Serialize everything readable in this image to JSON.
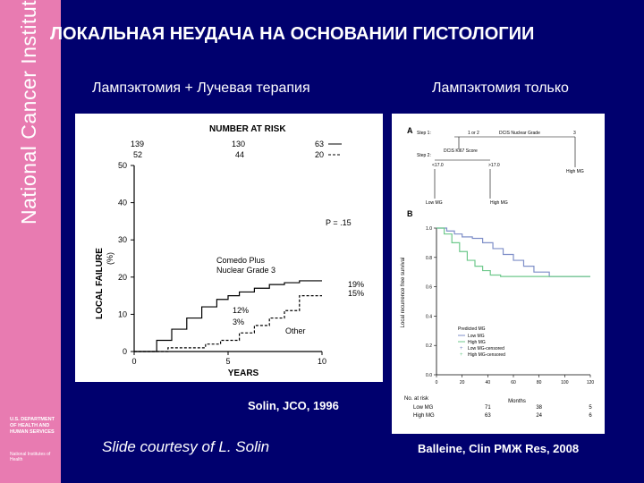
{
  "sidebar": {
    "institute": "National Cancer Institute",
    "hhs": "U.S. DEPARTMENT OF HEALTH AND HUMAN SERVICES",
    "nih": "National Institutes of Health"
  },
  "slide": {
    "title": "ЛОКАЛЬНАЯ НЕУДАЧА НА ОСНОВАНИИ ГИСТОЛОГИИ",
    "left_label": "Лампэктомия + Лучевая терапия",
    "right_label": "Лампэктомия только",
    "left_caption": "Solin, JCO, 1996",
    "right_caption": "Balleine, Clin PMЖ Res, 2008",
    "courtesy": "Slide courtesy of L. Solin"
  },
  "chart_data": [
    {
      "type": "line",
      "number_at_risk_title": "NUMBER AT RISK",
      "at_risk": {
        "left": [
          "139",
          "52"
        ],
        "middle": [
          "130",
          "44"
        ],
        "right": [
          "63",
          "20"
        ]
      },
      "xlabel": "YEARS",
      "ylabel": "LOCAL FAILURE",
      "ylabel_unit": "(%)",
      "xlim": [
        0,
        10
      ],
      "ylim": [
        0,
        50
      ],
      "x_ticks": [
        "0",
        "5",
        "10"
      ],
      "y_ticks": [
        "0",
        "10",
        "20",
        "30",
        "40",
        "50"
      ],
      "p_value": "P = .15",
      "series": [
        {
          "name": "Comedo Plus Nuclear Grade 3",
          "style": "solid",
          "x": [
            0,
            1.2,
            1.2,
            2.0,
            2.0,
            2.8,
            2.8,
            3.6,
            3.6,
            4.4,
            4.4,
            5.0,
            5.0,
            5.6,
            5.6,
            6.4,
            6.4,
            7.2,
            7.2,
            8.0,
            8.0,
            8.8,
            8.8,
            9.6,
            9.6,
            10
          ],
          "y": [
            0,
            0,
            3,
            3,
            6,
            6,
            9,
            9,
            12,
            12,
            14,
            14,
            15,
            15,
            16,
            16,
            17,
            17,
            18,
            18,
            18.5,
            18.5,
            19,
            19,
            19,
            19
          ]
        },
        {
          "name": "Other",
          "style": "dashed",
          "x": [
            0,
            1.8,
            1.8,
            3.8,
            3.8,
            4.6,
            4.6,
            5.6,
            5.6,
            6.4,
            6.4,
            7.2,
            7.2,
            8.0,
            8.0,
            8.8,
            8.8,
            10
          ],
          "y": [
            0,
            0,
            1,
            1,
            2,
            2,
            3,
            3,
            5,
            5,
            7,
            7,
            9,
            9,
            11,
            11,
            15,
            15
          ]
        }
      ],
      "annotations": [
        "Comedo Plus",
        "Nuclear Grade 3",
        "Other",
        "19%",
        "15%",
        "12%",
        "3%"
      ]
    },
    {
      "type": "line",
      "panel_a": {
        "label": "A",
        "step1": "Step 1:",
        "step1_values": [
          "1 or 2",
          "DCIS Nuclear Grade",
          "3"
        ],
        "step2": "Step 2:",
        "step2_title": "DCIS Ki67 Score",
        "step2_values": [
          "<17.0",
          ">17.0"
        ],
        "outcomes": [
          "Low MG",
          "High MG",
          "High MG"
        ]
      },
      "panel_b_label": "B",
      "ylabel": "Local recurrence free survival",
      "xlabel": "Months",
      "x_ticks": [
        "0",
        "20",
        "40",
        "60",
        "80",
        "100",
        "120"
      ],
      "y_ticks": [
        "1.0",
        "0.8",
        "0.6",
        "0.4",
        "0.2",
        "0.0"
      ],
      "xlim": [
        0,
        120
      ],
      "ylim": [
        0,
        1
      ],
      "legend_title": "Predicted MG",
      "legend": [
        "Low MG",
        "High MG",
        "Low MG-censored",
        "High MG-censored"
      ],
      "series": [
        {
          "name": "Low MG",
          "color": "#7f8fc8",
          "x": [
            0,
            8,
            8,
            14,
            14,
            20,
            20,
            28,
            28,
            36,
            36,
            44,
            44,
            52,
            52,
            60,
            60,
            68,
            68,
            76,
            76,
            88,
            88,
            120
          ],
          "y": [
            1.0,
            1.0,
            0.98,
            0.98,
            0.96,
            0.96,
            0.94,
            0.94,
            0.93,
            0.93,
            0.9,
            0.9,
            0.86,
            0.86,
            0.82,
            0.82,
            0.78,
            0.78,
            0.74,
            0.74,
            0.7,
            0.7,
            0.67,
            0.67
          ]
        },
        {
          "name": "High MG",
          "color": "#6fc98c",
          "x": [
            0,
            6,
            6,
            12,
            12,
            18,
            18,
            24,
            24,
            30,
            30,
            36,
            36,
            42,
            42,
            50,
            50,
            120
          ],
          "y": [
            1.0,
            1.0,
            0.96,
            0.96,
            0.9,
            0.9,
            0.84,
            0.84,
            0.78,
            0.78,
            0.74,
            0.74,
            0.71,
            0.71,
            0.68,
            0.68,
            0.67,
            0.67
          ]
        }
      ],
      "at_risk_title": "No. at risk",
      "at_risk": [
        {
          "name": "Low MG",
          "values": [
            "71",
            "38",
            "5"
          ]
        },
        {
          "name": "High MG",
          "values": [
            "63",
            "24",
            "6"
          ]
        }
      ]
    }
  ]
}
